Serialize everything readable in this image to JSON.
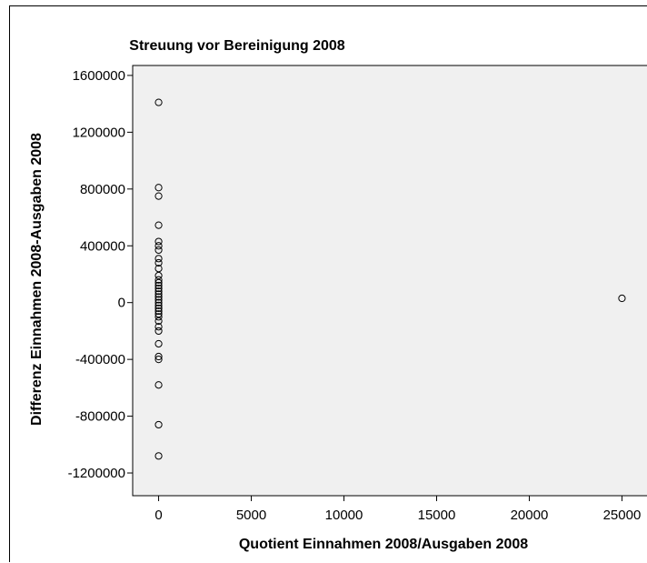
{
  "chart_data": {
    "type": "scatter",
    "title": "Streuung vor Bereinigung 2008",
    "xlabel": "Quotient Einnahmen 2008/Ausgaben 2008",
    "ylabel": "Differenz Einnahmen 2008-Ausgaben 2008",
    "xticks": [
      0,
      5000,
      10000,
      15000,
      20000,
      25000
    ],
    "xtick_labels": [
      "0",
      "5000",
      "10000",
      "15000",
      "20000",
      "25000"
    ],
    "yticks": [
      1600000,
      1200000,
      800000,
      400000,
      0,
      -400000,
      -800000,
      -1200000
    ],
    "ytick_labels": [
      "1600000",
      "1200000",
      "800000",
      "400000",
      "0",
      "-400000",
      "-800000",
      "-1200000"
    ],
    "xlim": [
      -1400,
      26400
    ],
    "ylim": [
      -1360000,
      1670000
    ],
    "grid": false,
    "legend": "none",
    "plot_background": "#f0f0f0",
    "marker": "open-circle",
    "series": [
      {
        "points": [
          {
            "x": 0,
            "y": 1410000
          },
          {
            "x": 0,
            "y": 810000
          },
          {
            "x": 0,
            "y": 750000
          },
          {
            "x": 0,
            "y": 545000
          },
          {
            "x": 0,
            "y": 430000
          },
          {
            "x": 0,
            "y": 400000
          },
          {
            "x": 0,
            "y": 370000
          },
          {
            "x": 0,
            "y": 310000
          },
          {
            "x": 0,
            "y": 280000
          },
          {
            "x": 0,
            "y": 240000
          },
          {
            "x": 0,
            "y": 190000
          },
          {
            "x": 0,
            "y": 160000
          },
          {
            "x": 0,
            "y": 140000
          },
          {
            "x": 0,
            "y": 120000
          },
          {
            "x": 0,
            "y": 100000
          },
          {
            "x": 0,
            "y": 80000
          },
          {
            "x": 0,
            "y": 60000
          },
          {
            "x": 0,
            "y": 40000
          },
          {
            "x": 0,
            "y": 20000
          },
          {
            "x": 0,
            "y": 0
          },
          {
            "x": 0,
            "y": -20000
          },
          {
            "x": 0,
            "y": -40000
          },
          {
            "x": 0,
            "y": -60000
          },
          {
            "x": 0,
            "y": -80000
          },
          {
            "x": 0,
            "y": -100000
          },
          {
            "x": 0,
            "y": -130000
          },
          {
            "x": 0,
            "y": -170000
          },
          {
            "x": 0,
            "y": -200000
          },
          {
            "x": 0,
            "y": -290000
          },
          {
            "x": 0,
            "y": -380000
          },
          {
            "x": 0,
            "y": -400000
          },
          {
            "x": 0,
            "y": -580000
          },
          {
            "x": 0,
            "y": -860000
          },
          {
            "x": 0,
            "y": -1080000
          },
          {
            "x": 25000,
            "y": 30000
          }
        ]
      }
    ]
  }
}
